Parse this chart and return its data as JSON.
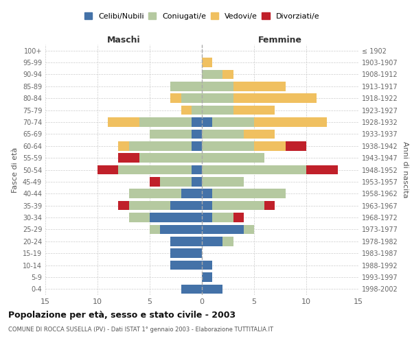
{
  "age_groups": [
    "0-4",
    "5-9",
    "10-14",
    "15-19",
    "20-24",
    "25-29",
    "30-34",
    "35-39",
    "40-44",
    "45-49",
    "50-54",
    "55-59",
    "60-64",
    "65-69",
    "70-74",
    "75-79",
    "80-84",
    "85-89",
    "90-94",
    "95-99",
    "100+"
  ],
  "anni_nascita": [
    "1998-2002",
    "1993-1997",
    "1988-1992",
    "1983-1987",
    "1978-1982",
    "1973-1977",
    "1968-1972",
    "1963-1967",
    "1958-1962",
    "1953-1957",
    "1948-1952",
    "1943-1947",
    "1938-1942",
    "1933-1937",
    "1928-1932",
    "1923-1927",
    "1918-1922",
    "1913-1917",
    "1908-1912",
    "1903-1907",
    "≤ 1902"
  ],
  "maschi": {
    "celibi": [
      2,
      0,
      3,
      3,
      3,
      4,
      5,
      3,
      2,
      1,
      1,
      0,
      1,
      1,
      1,
      0,
      0,
      0,
      0,
      0,
      0
    ],
    "coniugati": [
      0,
      0,
      0,
      0,
      0,
      1,
      2,
      4,
      5,
      3,
      7,
      6,
      6,
      4,
      5,
      1,
      2,
      3,
      0,
      0,
      0
    ],
    "vedovi": [
      0,
      0,
      0,
      0,
      0,
      0,
      0,
      0,
      0,
      0,
      0,
      0,
      1,
      0,
      3,
      1,
      1,
      0,
      0,
      0,
      0
    ],
    "divorziati": [
      0,
      0,
      0,
      0,
      0,
      0,
      0,
      1,
      0,
      1,
      2,
      2,
      0,
      0,
      0,
      0,
      0,
      0,
      0,
      0,
      0
    ]
  },
  "femmine": {
    "nubili": [
      2,
      1,
      1,
      0,
      2,
      4,
      1,
      1,
      1,
      0,
      0,
      0,
      0,
      0,
      1,
      0,
      0,
      0,
      0,
      0,
      0
    ],
    "coniugate": [
      0,
      0,
      0,
      0,
      1,
      1,
      2,
      5,
      7,
      4,
      10,
      6,
      5,
      4,
      4,
      3,
      3,
      3,
      2,
      0,
      0
    ],
    "vedove": [
      0,
      0,
      0,
      0,
      0,
      0,
      0,
      0,
      0,
      0,
      0,
      0,
      3,
      3,
      7,
      4,
      8,
      5,
      1,
      1,
      0
    ],
    "divorziate": [
      0,
      0,
      0,
      0,
      0,
      0,
      1,
      1,
      0,
      0,
      3,
      0,
      2,
      0,
      0,
      0,
      0,
      0,
      0,
      0,
      0
    ]
  },
  "colors": {
    "celibi": "#4472a8",
    "coniugati": "#b5c9a0",
    "vedovi": "#f0c060",
    "divorziati": "#c0202a"
  },
  "xlim": 15,
  "title": "Popolazione per età, sesso e stato civile - 2003",
  "subtitle": "COMUNE DI ROCCA SUSELLA (PV) - Dati ISTAT 1° gennaio 2003 - Elaborazione TUTTITALIA.IT",
  "ylabel_left": "Fasce di età",
  "ylabel_right": "Anni di nascita",
  "xlabel_left": "Maschi",
  "xlabel_right": "Femmine"
}
